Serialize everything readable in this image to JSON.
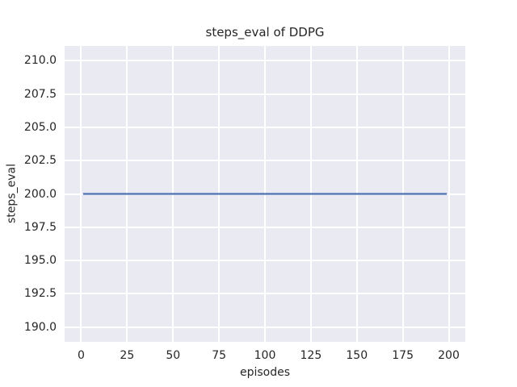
{
  "figure": {
    "background": "#ffffff"
  },
  "chart_data": {
    "type": "line",
    "title": "steps_eval of DDPG",
    "xlabel": "episodes",
    "ylabel": "steps_eval",
    "xlim": [
      -9,
      209
    ],
    "ylim": [
      188.9,
      211.1
    ],
    "xticks": [
      0,
      25,
      50,
      75,
      100,
      125,
      150,
      175,
      200
    ],
    "xtick_labels": [
      "0",
      "25",
      "50",
      "75",
      "100",
      "125",
      "150",
      "175",
      "200"
    ],
    "yticks": [
      190.0,
      192.5,
      195.0,
      197.5,
      200.0,
      202.5,
      205.0,
      207.5,
      210.0
    ],
    "ytick_labels": [
      "190.0",
      "192.5",
      "195.0",
      "197.5",
      "200.0",
      "202.5",
      "205.0",
      "207.5",
      "210.0"
    ],
    "grid": true,
    "legend": "none",
    "plot_background": "#eaeaf2",
    "grid_color": "#ffffff",
    "text_color": "#262626",
    "series": [
      {
        "name": "DDPG",
        "color": "#4c72b0",
        "x": [
          1,
          25,
          50,
          75,
          100,
          125,
          150,
          175,
          199
        ],
        "y": [
          200,
          200,
          200,
          200,
          200,
          200,
          200,
          200,
          200
        ]
      }
    ]
  }
}
